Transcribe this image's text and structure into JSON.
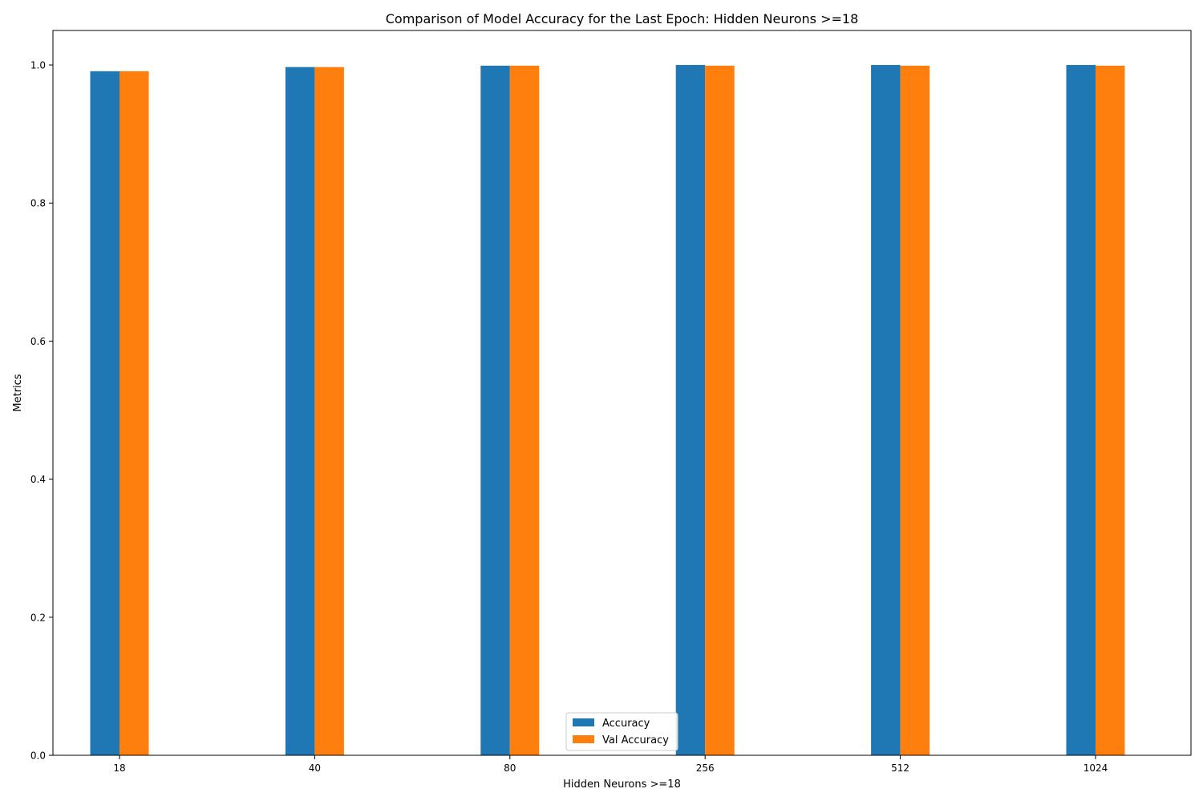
{
  "chart_data": {
    "type": "bar",
    "title": "Comparison of Model Accuracy for the Last Epoch: Hidden Neurons >=18",
    "xlabel": "Hidden Neurons >=18",
    "ylabel": "Metrics",
    "categories": [
      "18",
      "40",
      "80",
      "256",
      "512",
      "1024"
    ],
    "series": [
      {
        "name": "Accuracy",
        "color": "#1f77b4",
        "values": [
          0.991,
          0.997,
          0.999,
          1.0,
          1.0,
          1.0
        ]
      },
      {
        "name": "Val Accuracy",
        "color": "#ff7f0e",
        "values": [
          0.991,
          0.997,
          0.999,
          0.999,
          0.999,
          0.999
        ]
      }
    ],
    "ylim": [
      0,
      1.05
    ],
    "yticks": [
      0.0,
      0.2,
      0.4,
      0.6,
      0.8,
      1.0
    ],
    "ytick_labels": [
      "0.0",
      "0.2",
      "0.4",
      "0.6",
      "0.8",
      "1.0"
    ],
    "grid": false,
    "legend_position": "bottom-center"
  }
}
